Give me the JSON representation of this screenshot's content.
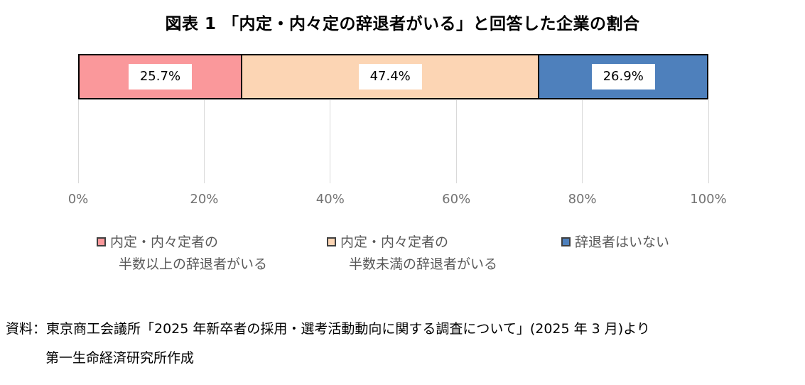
{
  "title": "図表 1 「内定・内々定の辞退者がいる」と回答した企業の割合",
  "chart_data": {
    "type": "bar",
    "subtype": "horizontal-stacked-100percent",
    "title": "図表 1 「内定・内々定の辞退者がいる」と回答した企業の割合",
    "series": [
      {
        "name": "内定・内々定者の半数以上の辞退者がいる",
        "value": 25.7,
        "label": "25.7%",
        "color": "#fa989b"
      },
      {
        "name": "内定・内々定者の半数未満の辞退者がいる",
        "value": 47.4,
        "label": "47.4%",
        "color": "#fcd5b4"
      },
      {
        "name": "辞退者はいない",
        "value": 26.9,
        "label": "26.9%",
        "color": "#4e80bc"
      }
    ],
    "x_ticks": [
      "0%",
      "20%",
      "40%",
      "60%",
      "80%",
      "100%"
    ],
    "xlim": [
      0,
      100
    ],
    "grid": true,
    "legend_position": "bottom"
  },
  "legend": {
    "items": [
      {
        "lines": [
          "内定・内々定者の",
          "半数以上の辞退者がいる"
        ]
      },
      {
        "lines": [
          "内定・内々定者の",
          "半数未満の辞退者がいる"
        ]
      },
      {
        "lines": [
          "辞退者はいない"
        ]
      }
    ]
  },
  "source": {
    "line1": "資料：東京商工会議所「2025 年新卒者の採用・選考活動動向に関する調査について」(2025 年 3 月)より",
    "line2": "第一生命経済研究所作成"
  },
  "colors": {
    "grid": "#d9d9d9",
    "axis_text": "#737373",
    "legend_text": "#595959",
    "bar_border": "#000000",
    "value_label_bg": "#ffffff"
  }
}
